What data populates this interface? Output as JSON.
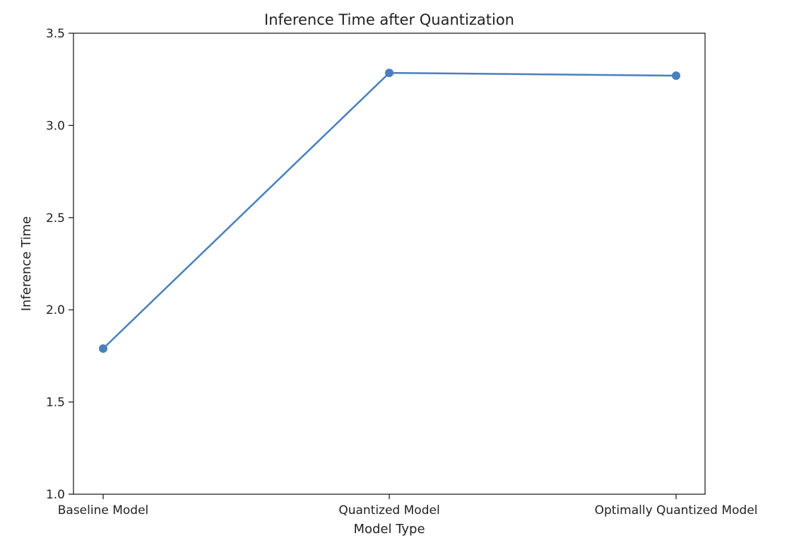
{
  "chart_data": {
    "type": "line",
    "title": "Inference Time after Quantization",
    "xlabel": "Model Type",
    "ylabel": "Inference Time",
    "categories": [
      "Baseline Model",
      "Quantized Model",
      "Optimally Quantized Model"
    ],
    "series": [
      {
        "values": [
          1.79,
          3.285,
          3.27
        ],
        "color": "#4a7fbd"
      }
    ],
    "ylim": [
      1.0,
      3.5
    ],
    "yticks": [
      1.0,
      1.5,
      2.0,
      2.5,
      3.0,
      3.5
    ],
    "ytick_labels": [
      "1.0",
      "1.5",
      "2.0",
      "2.5",
      "3.0",
      "3.5"
    ],
    "grid": false,
    "markers": true
  }
}
